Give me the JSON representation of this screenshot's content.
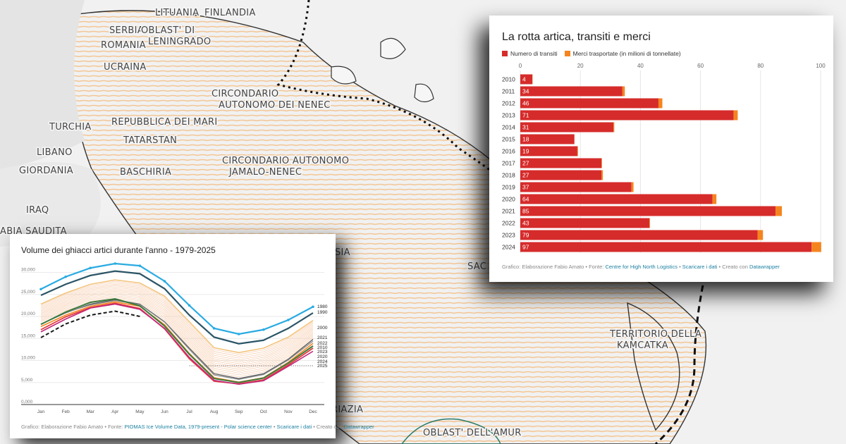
{
  "map": {
    "labels": [
      "LITUANIA",
      "FINLANDIA",
      "SERBIA",
      "ROMANIA",
      "OBLAST' DI LENINGRADO",
      "UCRAINA",
      "TURCHIA",
      "REPUBBLICA DEI MARI",
      "CIRCONDARIO AUTONOMO DEI NENEC",
      "LIBANO",
      "TATARSTAN",
      "GIORDANIA",
      "BASCHIRIA",
      "CIRCONDARIO AUTONOMO JAMALO-NENEC",
      "IRAQ",
      "ABIA SAUDITA",
      "SIA",
      "SAC",
      "TERRITORIO DELLA KAMCATKA",
      "RIAZIA",
      "OBLAST' DELL'AMUR"
    ],
    "colors": {
      "land": "#ebebeb",
      "hatch": "#f3c695",
      "coast": "#333333",
      "route": "#111111"
    }
  },
  "transit_chart": {
    "title": "La rotta artica, transiti e merci",
    "legend": [
      {
        "label": "Numero di transiti",
        "color": "#d62b2b"
      },
      {
        "label": "Merci trasportate (in milioni di tonnellate)",
        "color": "#f5841f"
      }
    ],
    "source": {
      "prefix": "Grafico: Elaborazione Fabio Amato • Fonte: ",
      "link1": "Centre for High North Logistics",
      "sep1": " • ",
      "link2": "Scaricare i dati",
      "sep2": " • Creato con ",
      "link3": "Datawrapper"
    }
  },
  "ice_chart": {
    "title": "Volume dei ghiacci artici durante l'anno - 1979-2025",
    "source": {
      "prefix": "Grafico: Elaborazione Fabio Amato • Fonte: ",
      "link1": "PIOMAS Ice Volume Data, 1979-present - Polar science center",
      "sep1": " • ",
      "link2": "Scaricare i dati",
      "sep2": " • Creato con ",
      "link3": "Datawrapper"
    }
  },
  "chart_data": [
    {
      "type": "bar",
      "title": "La rotta artica, transiti e merci",
      "orientation": "horizontal",
      "stacked": true,
      "categories": [
        "2010",
        "2011",
        "2012",
        "2013",
        "2014",
        "2015",
        "2016",
        "2017",
        "2018",
        "2019",
        "2020",
        "2021",
        "2022",
        "2023",
        "2024"
      ],
      "series": [
        {
          "name": "Numero di transiti",
          "color": "#d62b2b",
          "values": [
            4,
            34,
            46,
            71,
            31,
            18,
            19,
            27,
            27,
            37,
            64,
            85,
            43,
            79,
            97
          ]
        },
        {
          "name": "Merci trasportate (in milioni di tonnellate)",
          "color": "#f5841f",
          "values": [
            0.1,
            0.8,
            1.3,
            1.4,
            0.3,
            0.04,
            0.2,
            0.2,
            0.5,
            0.7,
            1.3,
            2.1,
            0.2,
            1.8,
            3.2
          ]
        }
      ],
      "xlim": [
        0,
        100
      ],
      "xticks": [
        0,
        20,
        40,
        60,
        80,
        100
      ],
      "grid": true,
      "legend_position": "top-left"
    },
    {
      "type": "line",
      "title": "Volume dei ghiacci artici durante l'anno - 1979-2025",
      "x": [
        "Jan",
        "Feb",
        "Mar",
        "Apr",
        "May",
        "Jun",
        "Jul",
        "Aug",
        "Sep",
        "Oct",
        "Nov",
        "Dec"
      ],
      "ylim": [
        0,
        32000
      ],
      "yticks": [
        0,
        5000,
        10000,
        15000,
        20000,
        25000,
        30000
      ],
      "ytick_labels": [
        "0,000",
        "5,000",
        "10,000",
        "15,000",
        "20,000",
        "25,000",
        "30,000"
      ],
      "grid": true,
      "series": [
        {
          "name": "1980",
          "color": "#29abe2",
          "width": 2.2,
          "values": [
            26200,
            29000,
            31000,
            32000,
            31500,
            28000,
            22500,
            17300,
            16000,
            17000,
            19200,
            22200
          ]
        },
        {
          "name": "1990",
          "color": "#2b5566",
          "width": 2.2,
          "values": [
            24800,
            27300,
            29300,
            30300,
            29700,
            26300,
            20300,
            15300,
            13800,
            14600,
            17300,
            20800
          ]
        },
        {
          "name": "2000",
          "color": "#f3c37a",
          "width": 1.6,
          "values": [
            22800,
            25300,
            27300,
            28300,
            27600,
            24600,
            18800,
            12900,
            11800,
            12800,
            15300,
            19100
          ]
        },
        {
          "name": "2021",
          "color": "#555555",
          "width": 1.2,
          "values": [
            18200,
            20800,
            22800,
            23800,
            22800,
            18800,
            12800,
            7000,
            5900,
            7000,
            10300,
            14800
          ]
        },
        {
          "name": "2022",
          "color": "#8a8a8a",
          "width": 1.2,
          "values": [
            18300,
            20900,
            22600,
            23600,
            22700,
            18700,
            12500,
            6700,
            5700,
            6800,
            10100,
            14400
          ]
        },
        {
          "name": "2010",
          "color": "#f5841f",
          "width": 1.6,
          "values": [
            17700,
            20300,
            22300,
            23300,
            22300,
            18100,
            11600,
            6100,
            5100,
            6100,
            9600,
            13900
          ]
        },
        {
          "name": "2023",
          "color": "#3d7a3d",
          "width": 2,
          "values": [
            18200,
            21000,
            23200,
            24000,
            22400,
            17800,
            11400,
            5900,
            5000,
            6000,
            9400,
            13300
          ]
        },
        {
          "name": "2020",
          "color": "#e53a3a",
          "width": 1.8,
          "values": [
            17000,
            19900,
            22000,
            23000,
            21800,
            17200,
            10400,
            5300,
            4700,
            5600,
            9000,
            12800
          ]
        },
        {
          "name": "2024",
          "color": "#c0287a",
          "width": 1.6,
          "values": [
            16500,
            19400,
            21900,
            22800,
            21600,
            17300,
            10700,
            5500,
            4600,
            5400,
            8700,
            12100
          ]
        },
        {
          "name": "2025",
          "color": "#1a1a1a",
          "width": 2,
          "dashed": true,
          "values": [
            15200,
            18300,
            20300,
            21200,
            20000,
            null,
            null,
            null,
            null,
            null,
            null,
            null
          ]
        }
      ],
      "reference_line": {
        "value": 8800,
        "from": "Jul",
        "to": "Dec",
        "label": "2025"
      }
    }
  ]
}
